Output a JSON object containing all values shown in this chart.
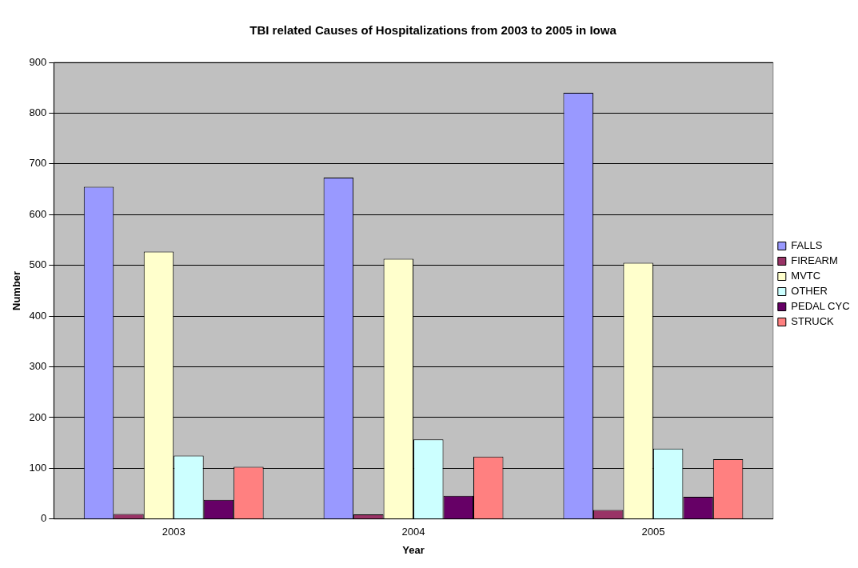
{
  "chart_data": {
    "type": "bar",
    "title": "TBI related Causes of Hospitalizations from 2003 to 2005 in Iowa",
    "xlabel": "Year",
    "ylabel": "Number",
    "categories": [
      "2003",
      "2004",
      "2005"
    ],
    "series": [
      {
        "name": "FALLS",
        "color": "#9999ff",
        "values": [
          655,
          673,
          840
        ]
      },
      {
        "name": "FIREARM",
        "color": "#993366",
        "values": [
          10,
          9,
          18
        ]
      },
      {
        "name": "MVTC",
        "color": "#ffffcc",
        "values": [
          527,
          513,
          505
        ]
      },
      {
        "name": "OTHER",
        "color": "#ccffff",
        "values": [
          125,
          157,
          139
        ]
      },
      {
        "name": "PEDAL CYC",
        "color": "#660066",
        "values": [
          38,
          46,
          44
        ]
      },
      {
        "name": "STRUCK",
        "color": "#ff8080",
        "values": [
          103,
          123,
          118
        ]
      }
    ],
    "ylim": [
      0,
      900
    ],
    "yticks": [
      0,
      100,
      200,
      300,
      400,
      500,
      600,
      700,
      800,
      900
    ],
    "grid": "y",
    "legend": "right"
  }
}
